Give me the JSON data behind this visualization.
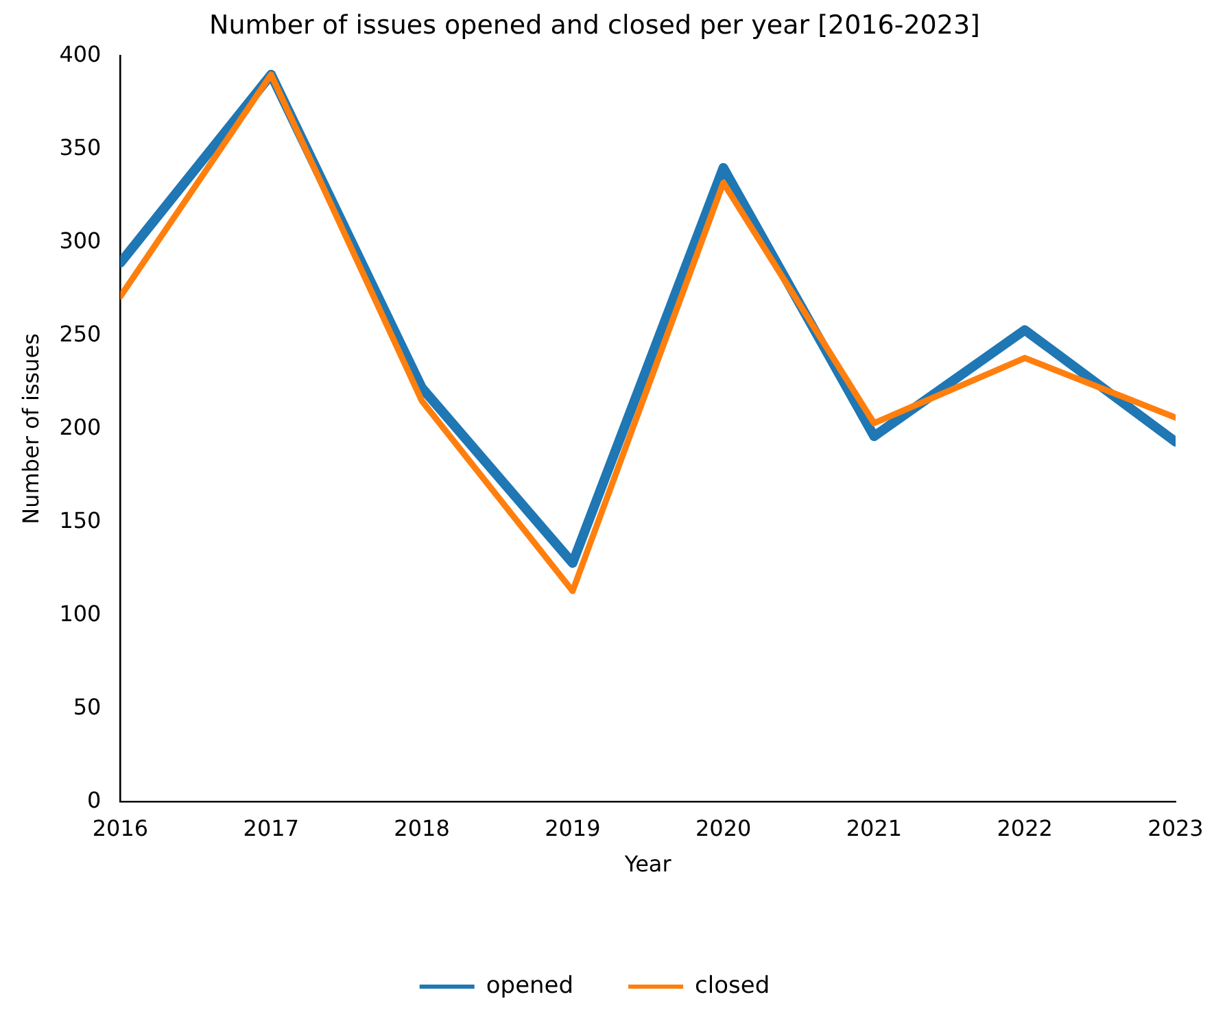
{
  "chart_data": {
    "type": "line",
    "title": "Number of issues opened and closed per year [2016-2023]",
    "xlabel": "Year",
    "ylabel": "Number of issues",
    "x": [
      2016,
      2017,
      2018,
      2019,
      2020,
      2021,
      2022,
      2023
    ],
    "series": [
      {
        "name": "opened",
        "color": "#1f77b4",
        "values": [
          289,
          390,
          222,
          128,
          340,
          196,
          253,
          193
        ]
      },
      {
        "name": "closed",
        "color": "#ff7f0e",
        "values": [
          271,
          390,
          215,
          113,
          332,
          203,
          238,
          206
        ]
      }
    ],
    "xlim": [
      2016,
      2023
    ],
    "xticks": [
      2016,
      2017,
      2018,
      2019,
      2020,
      2021,
      2022,
      2023
    ],
    "ylim": [
      0,
      400
    ],
    "yticks": [
      0,
      50,
      100,
      150,
      200,
      250,
      300,
      350,
      400
    ],
    "grid": false,
    "legend": "bottom",
    "marker": "none",
    "line_style": "solid"
  }
}
